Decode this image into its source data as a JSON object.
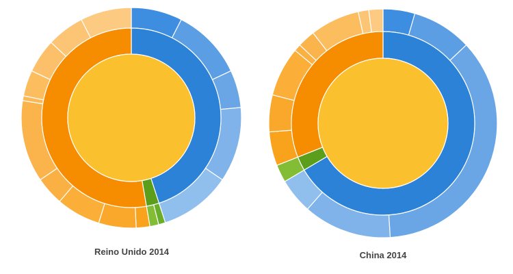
{
  "charts": [
    {
      "id": "uk",
      "caption": "Reino Unido 2014",
      "chart_data": {
        "type": "sunburst",
        "title": "Reino Unido 2014",
        "center": {
          "value": 100,
          "color": "#fbc02d"
        },
        "middle": [
          {
            "value": 45.0,
            "color": "#2b82d6"
          },
          {
            "value": 2.3,
            "color": "#5a9e1b"
          },
          {
            "value": 52.7,
            "color": "#f68c00"
          }
        ],
        "outer": [
          {
            "value": 7.5,
            "color": "#3d8de0"
          },
          {
            "value": 10.5,
            "color": "#5c9ee4"
          },
          {
            "value": 5.5,
            "color": "#6aa6e5"
          },
          {
            "value": 11.0,
            "color": "#7fb3e9"
          },
          {
            "value": 10.5,
            "color": "#91bfed"
          },
          {
            "value": 1.0,
            "color": "#6aad2a"
          },
          {
            "value": 1.3,
            "color": "#82bd35"
          },
          {
            "value": 2.0,
            "color": "#f9a21c"
          },
          {
            "value": 5.5,
            "color": "#faa82c"
          },
          {
            "value": 6.5,
            "color": "#fbae38"
          },
          {
            "value": 4.2,
            "color": "#fab042"
          },
          {
            "value": 12.0,
            "color": "#fbb34c"
          },
          {
            "value": 0.7,
            "color": "#fbb855"
          },
          {
            "value": 3.8,
            "color": "#fcbd5f"
          },
          {
            "value": 5.0,
            "color": "#fcc06a"
          },
          {
            "value": 5.5,
            "color": "#fcc575"
          },
          {
            "value": 7.5,
            "color": "#fdca82"
          }
        ]
      }
    },
    {
      "id": "cn",
      "caption": "China 2014",
      "chart_data": {
        "type": "sunburst",
        "title": "China 2014",
        "center": {
          "value": 100,
          "color": "#fbc02d"
        },
        "middle": [
          {
            "value": 66.5,
            "color": "#2b82d6"
          },
          {
            "value": 2.5,
            "color": "#5a9e1b"
          },
          {
            "value": 31.0,
            "color": "#f68c00"
          }
        ],
        "outer": [
          {
            "value": 4.5,
            "color": "#3d8de0"
          },
          {
            "value": 8.5,
            "color": "#5c9ee4"
          },
          {
            "value": 36.0,
            "color": "#6aa6e5"
          },
          {
            "value": 12.5,
            "color": "#7fb3e9"
          },
          {
            "value": 5.0,
            "color": "#91bfed"
          },
          {
            "value": 2.5,
            "color": "#82bd35"
          },
          {
            "value": 4.8,
            "color": "#f9a21c"
          },
          {
            "value": 5.2,
            "color": "#faa82c"
          },
          {
            "value": 7.0,
            "color": "#fbae38"
          },
          {
            "value": 1.0,
            "color": "#fab042"
          },
          {
            "value": 2.5,
            "color": "#fbb34c"
          },
          {
            "value": 7.0,
            "color": "#fcbd5f"
          },
          {
            "value": 1.5,
            "color": "#fcc575"
          },
          {
            "value": 2.0,
            "color": "#fdca82"
          }
        ]
      }
    }
  ]
}
